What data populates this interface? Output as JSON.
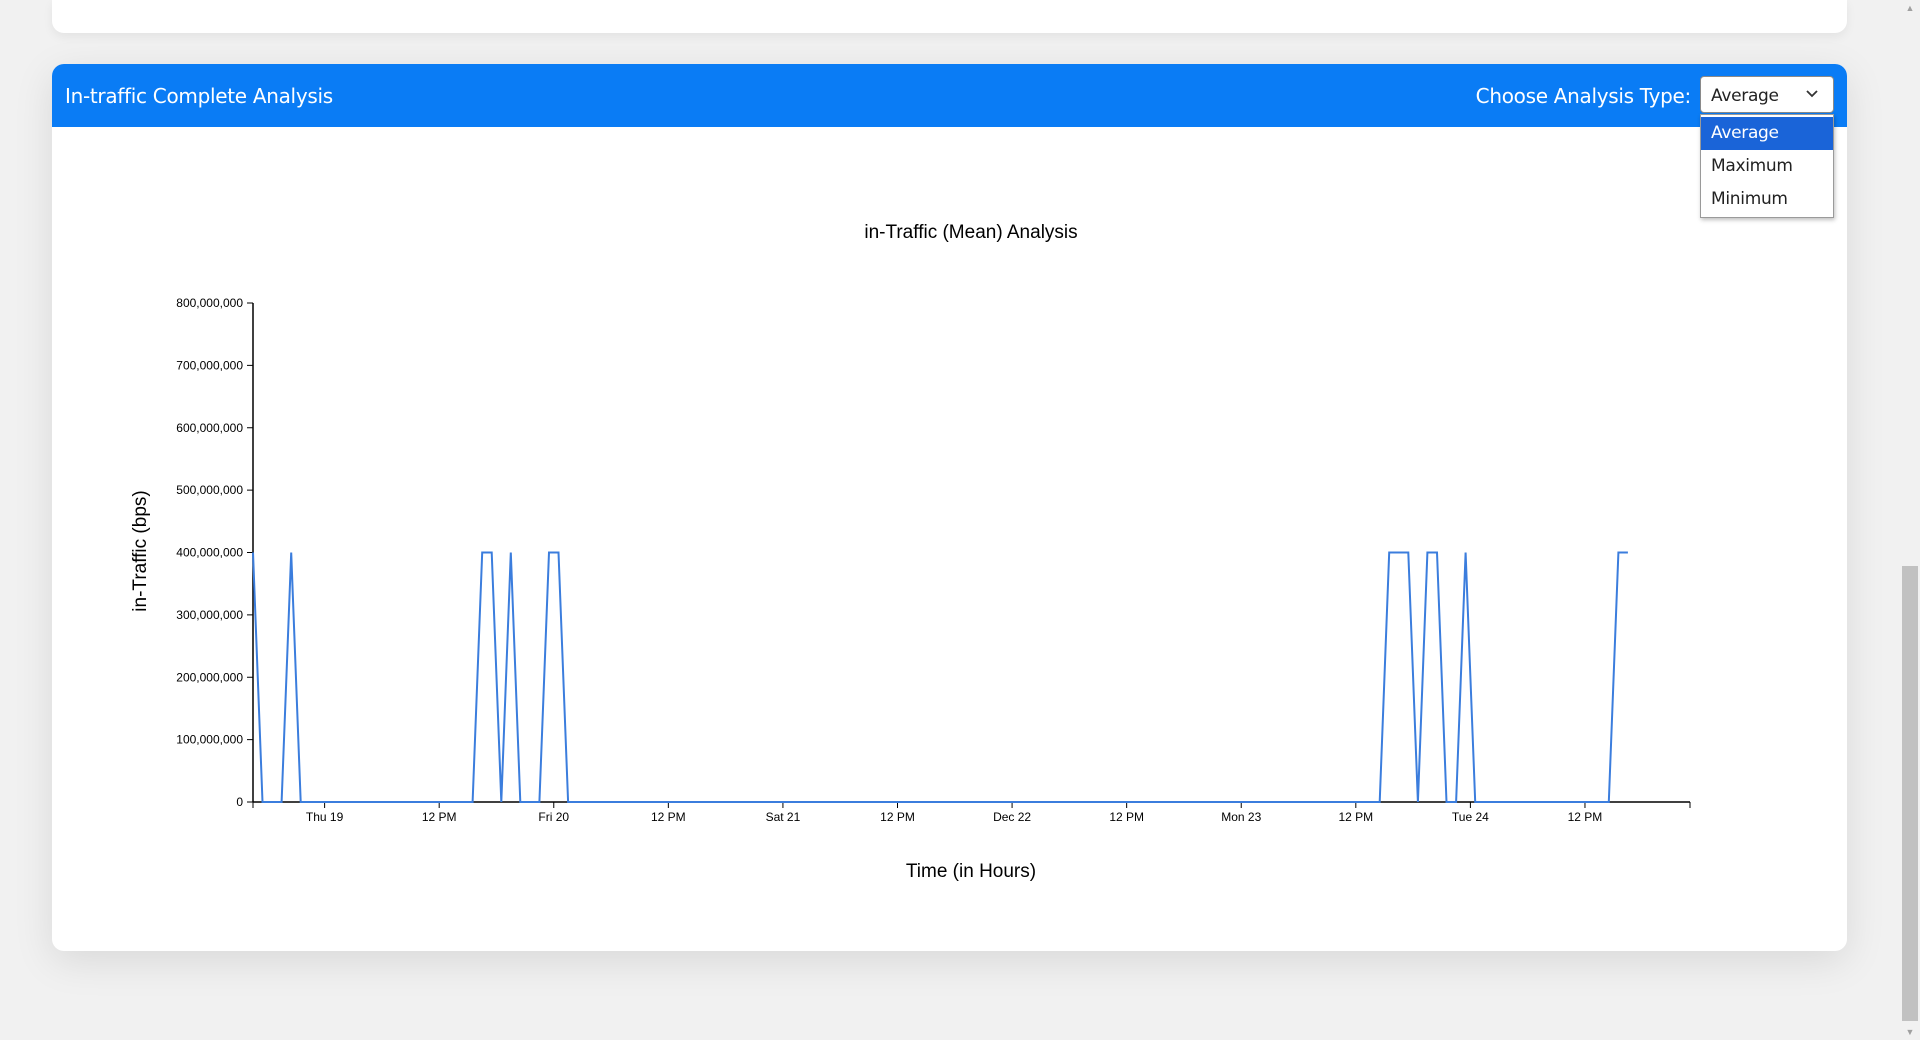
{
  "card": {
    "title": "In-traffic Complete Analysis",
    "analysis_label": "Choose Analysis Type:"
  },
  "select": {
    "value": "Average",
    "icon": "chevron-down-icon",
    "options": [
      "Average",
      "Maximum",
      "Minimum"
    ]
  },
  "colors": {
    "header": "#0a7cf5",
    "line": "#3b7ddd",
    "selected_option": "#1a64d8"
  },
  "chart_data": {
    "type": "line",
    "title": "in-Traffic (Mean) Analysis",
    "xlabel": "Time (in Hours)",
    "ylabel": "in-Traffic (bps)",
    "ylim": [
      0,
      800000000
    ],
    "y_ticks": [
      {
        "value": 0,
        "label": "0"
      },
      {
        "value": 100000000,
        "label": "100,000,000"
      },
      {
        "value": 200000000,
        "label": "200,000,000"
      },
      {
        "value": 300000000,
        "label": "300,000,000"
      },
      {
        "value": 400000000,
        "label": "400,000,000"
      },
      {
        "value": 500000000,
        "label": "500,000,000"
      },
      {
        "value": 600000000,
        "label": "600,000,000"
      },
      {
        "value": 700000000,
        "label": "700,000,000"
      },
      {
        "value": 800000000,
        "label": "800,000,000"
      }
    ],
    "xlim": [
      "Dec 18 16:30",
      "Dec 24 23:00"
    ],
    "x_ticks": [
      {
        "time": "Dec 19 00:00",
        "label": "Thu 19"
      },
      {
        "time": "Dec 19 12:00",
        "label": "12 PM"
      },
      {
        "time": "Dec 20 00:00",
        "label": "Fri 20"
      },
      {
        "time": "Dec 20 12:00",
        "label": "12 PM"
      },
      {
        "time": "Dec 21 00:00",
        "label": "Sat 21"
      },
      {
        "time": "Dec 21 12:00",
        "label": "12 PM"
      },
      {
        "time": "Dec 22 00:00",
        "label": "Dec 22"
      },
      {
        "time": "Dec 22 12:00",
        "label": "12 PM"
      },
      {
        "time": "Dec 23 00:00",
        "label": "Mon 23"
      },
      {
        "time": "Dec 23 12:00",
        "label": "12 PM"
      },
      {
        "time": "Dec 24 00:00",
        "label": "Tue 24"
      },
      {
        "time": "Dec 24 12:00",
        "label": "12 PM"
      }
    ],
    "series": [
      {
        "points": [
          [
            "Dec 18 16:30",
            400000000
          ],
          [
            "Dec 18 17:30",
            0
          ],
          [
            "Dec 18 19:30",
            0
          ],
          [
            "Dec 18 20:30",
            400000000
          ],
          [
            "Dec 18 21:30",
            0
          ],
          [
            "Dec 19 15:30",
            0
          ],
          [
            "Dec 19 16:30",
            400000000
          ],
          [
            "Dec 19 17:30",
            400000000
          ],
          [
            "Dec 19 18:30",
            0
          ],
          [
            "Dec 19 19:30",
            400000000
          ],
          [
            "Dec 19 20:30",
            0
          ],
          [
            "Dec 19 22:30",
            0
          ],
          [
            "Dec 19 23:30",
            400000000
          ],
          [
            "Dec 20 00:30",
            400000000
          ],
          [
            "Dec 20 01:30",
            0
          ],
          [
            "Dec 23 14:30",
            0
          ],
          [
            "Dec 23 15:30",
            400000000
          ],
          [
            "Dec 23 17:30",
            400000000
          ],
          [
            "Dec 23 18:30",
            0
          ],
          [
            "Dec 23 19:30",
            400000000
          ],
          [
            "Dec 23 20:30",
            400000000
          ],
          [
            "Dec 23 21:30",
            0
          ],
          [
            "Dec 23 22:30",
            0
          ],
          [
            "Dec 23 23:30",
            400000000
          ],
          [
            "Dec 24 00:30",
            0
          ],
          [
            "Dec 24 14:30",
            0
          ],
          [
            "Dec 24 15:30",
            400000000
          ],
          [
            "Dec 24 16:30",
            400000000
          ]
        ]
      }
    ],
    "grid": false,
    "legend": "none"
  }
}
